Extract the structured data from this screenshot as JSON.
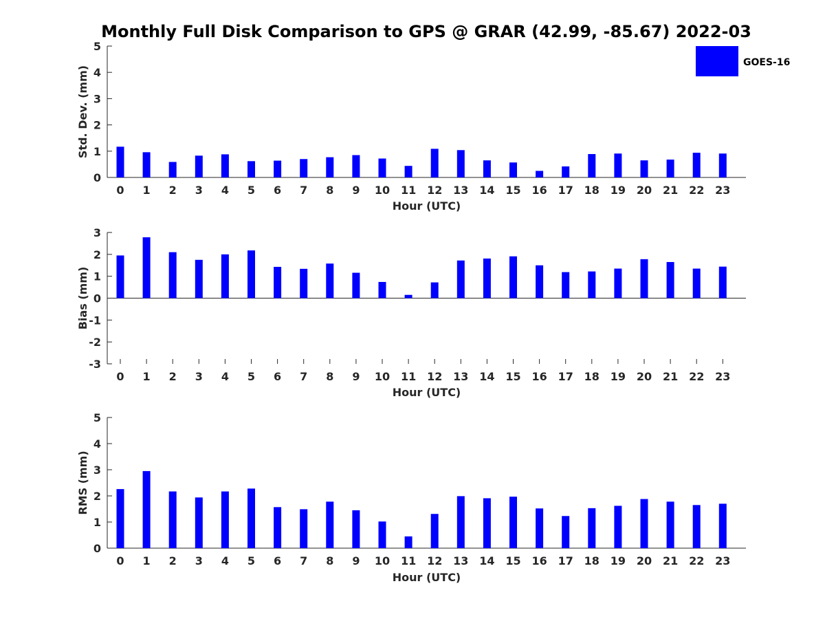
{
  "chart_data": {
    "type": "bar",
    "title": "Monthly Full Disk Comparison to GPS @ GRAR (42.99, -85.67) 2022-03",
    "legend": {
      "placement": "top-right",
      "entries": [
        {
          "name": "GOES-16",
          "color": "#0000ff"
        }
      ]
    },
    "bar_color": "#0000ff",
    "grid": false,
    "categories": [
      "0",
      "1",
      "2",
      "3",
      "4",
      "5",
      "6",
      "7",
      "8",
      "9",
      "10",
      "11",
      "12",
      "13",
      "14",
      "15",
      "16",
      "17",
      "18",
      "19",
      "20",
      "21",
      "22",
      "23"
    ],
    "panels": [
      {
        "id": "std-dev",
        "xlabel": "Hour (UTC)",
        "ylabel": "Std. Dev. (mm)",
        "ylim": [
          0,
          5
        ],
        "yticks": [
          "0",
          "1",
          "2",
          "3",
          "4",
          "5"
        ],
        "series": [
          {
            "name": "GOES-16",
            "values": [
              1.17,
              0.96,
              0.59,
              0.83,
              0.88,
              0.62,
              0.64,
              0.7,
              0.77,
              0.85,
              0.72,
              0.44,
              1.09,
              1.04,
              0.65,
              0.57,
              0.25,
              0.42,
              0.89,
              0.91,
              0.65,
              0.68,
              0.94,
              0.91
            ]
          }
        ]
      },
      {
        "id": "bias",
        "xlabel": "Hour (UTC)",
        "ylabel": "Bias (mm)",
        "ylim": [
          -3,
          3
        ],
        "yticks": [
          "-3",
          "-2",
          "-1",
          "0",
          "1",
          "2",
          "3"
        ],
        "series": [
          {
            "name": "GOES-16",
            "values": [
              1.95,
              2.78,
              2.1,
              1.75,
              2.0,
              2.18,
              1.43,
              1.34,
              1.58,
              1.16,
              0.74,
              0.15,
              0.72,
              1.72,
              1.81,
              1.91,
              1.5,
              1.19,
              1.22,
              1.35,
              1.78,
              1.65,
              1.35,
              1.44
            ]
          }
        ]
      },
      {
        "id": "rms",
        "xlabel": "Hour (UTC)",
        "ylabel": "RMS (mm)",
        "ylim": [
          0,
          5
        ],
        "yticks": [
          "0",
          "1",
          "2",
          "3",
          "4",
          "5"
        ],
        "series": [
          {
            "name": "GOES-16",
            "values": [
              2.26,
              2.95,
              2.17,
              1.94,
              2.17,
              2.28,
              1.57,
              1.49,
              1.78,
              1.45,
              1.02,
              0.45,
              1.31,
              1.99,
              1.91,
              1.97,
              1.52,
              1.23,
              1.53,
              1.62,
              1.88,
              1.78,
              1.65,
              1.7
            ]
          }
        ]
      }
    ]
  }
}
